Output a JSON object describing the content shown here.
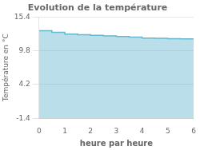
{
  "chart_data": {
    "type": "step",
    "title": "Evolution de la température",
    "xlabel": "heure par heure",
    "ylabel": "Température en °C",
    "x": [
      0,
      0.5,
      1,
      1.5,
      2,
      2.5,
      3,
      3.5,
      4,
      4.5,
      5,
      5.5,
      6
    ],
    "values": [
      13.1,
      12.85,
      12.55,
      12.45,
      12.35,
      12.25,
      12.15,
      12.05,
      11.9,
      11.85,
      11.8,
      11.75,
      11.75
    ],
    "color": "#66b8d0",
    "xlim": [
      0,
      6
    ],
    "xticks": [
      0,
      1,
      2,
      3,
      4,
      5,
      6
    ],
    "ylim": [
      -1.4,
      15.4
    ],
    "yticks": [
      -1.4,
      4.2,
      9.8,
      15.4
    ],
    "grid": "y"
  }
}
